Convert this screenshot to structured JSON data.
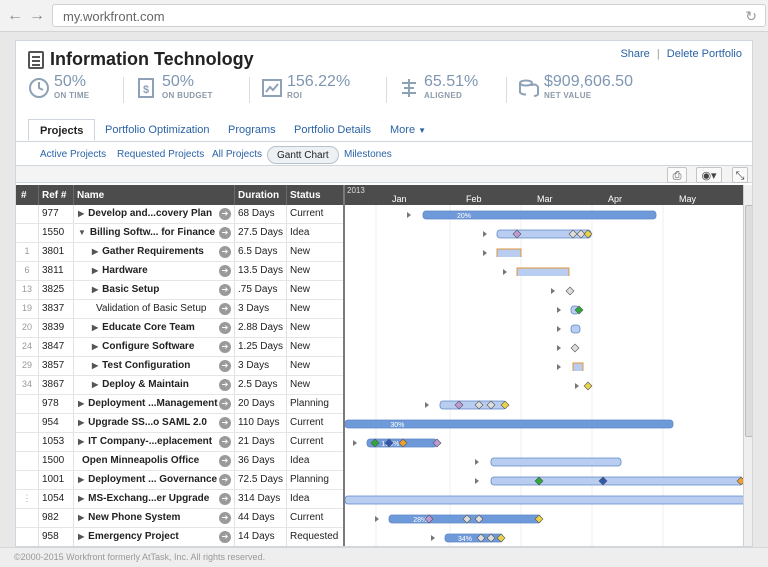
{
  "browser": {
    "url": "my.workfront.com"
  },
  "header": {
    "title": "Information Technology",
    "actions": [
      "Share",
      "|",
      "Delete Portfolio"
    ]
  },
  "metrics": [
    {
      "value": "50%",
      "label": "ON TIME",
      "icon": "clock-icon"
    },
    {
      "value": "50%",
      "label": "ON BUDGET",
      "icon": "dollar-document-icon"
    },
    {
      "value": "156.22%",
      "label": "ROI",
      "icon": "trend-chart-icon"
    },
    {
      "value": "65.51%",
      "label": "ALIGNED",
      "icon": "alignment-icon"
    },
    {
      "value": "$909,606.50",
      "label": "NET VALUE",
      "icon": "coins-icon"
    }
  ],
  "tabs": [
    "Projects",
    "Portfolio Optimization",
    "Programs",
    "Portfolio Details",
    "More"
  ],
  "subtabs": [
    "Active Projects",
    "Requested Projects",
    "All Projects",
    "Gantt Chart",
    "Milestones"
  ],
  "grid": {
    "headers": {
      "num": "#",
      "ref": "Ref #",
      "name": "Name",
      "duration": "Duration",
      "status": "Status"
    },
    "rows": [
      {
        "num": "",
        "ref": "977",
        "name": "Develop and...covery Plan",
        "duration": "68 Days",
        "status": "Current",
        "bold": true,
        "tri": "▶",
        "indent": 0
      },
      {
        "num": "",
        "ref": "1550",
        "name": "Billing Softw... for Finance",
        "duration": "27.5 Days",
        "status": "Idea",
        "bold": true,
        "tri": "▼",
        "indent": 0
      },
      {
        "num": "1",
        "ref": "3801",
        "name": "Gather Requirements",
        "duration": "6.5 Days",
        "status": "New",
        "bold": true,
        "tri": "▶",
        "indent": 1
      },
      {
        "num": "6",
        "ref": "3811",
        "name": "Hardware",
        "duration": "13.5 Days",
        "status": "New",
        "bold": true,
        "tri": "▶",
        "indent": 1
      },
      {
        "num": "13",
        "ref": "3825",
        "name": "Basic Setup",
        "duration": ".75 Days",
        "status": "New",
        "bold": true,
        "tri": "▶",
        "indent": 1
      },
      {
        "num": "19",
        "ref": "3837",
        "name": "Validation of Basic Setup",
        "duration": "3 Days",
        "status": "New",
        "bold": false,
        "tri": "",
        "indent": 1
      },
      {
        "num": "20",
        "ref": "3839",
        "name": "Educate Core Team",
        "duration": "2.88 Days",
        "status": "New",
        "bold": true,
        "tri": "▶",
        "indent": 1
      },
      {
        "num": "24",
        "ref": "3847",
        "name": "Configure Software",
        "duration": "1.25 Days",
        "status": "New",
        "bold": true,
        "tri": "▶",
        "indent": 1
      },
      {
        "num": "29",
        "ref": "3857",
        "name": "Test Configuration",
        "duration": "3 Days",
        "status": "New",
        "bold": true,
        "tri": "▶",
        "indent": 1
      },
      {
        "num": "34",
        "ref": "3867",
        "name": "Deploy & Maintain",
        "duration": "2.5 Days",
        "status": "New",
        "bold": true,
        "tri": "▶",
        "indent": 1
      },
      {
        "num": "",
        "ref": "978",
        "name": "Deployment ...Management",
        "duration": "20 Days",
        "status": "Planning",
        "bold": true,
        "tri": "▶",
        "indent": 0
      },
      {
        "num": "",
        "ref": "954",
        "name": "Upgrade SS...o SAML 2.0",
        "duration": "110 Days",
        "status": "Current",
        "bold": true,
        "tri": "▶",
        "indent": 0
      },
      {
        "num": "",
        "ref": "1053",
        "name": "IT Company-...eplacement",
        "duration": "21 Days",
        "status": "Current",
        "bold": true,
        "tri": "▶",
        "indent": 0
      },
      {
        "num": "",
        "ref": "1500",
        "name": "Open Minneapolis Office",
        "duration": "36 Days",
        "status": "Idea",
        "bold": true,
        "tri": "",
        "indent": 0
      },
      {
        "num": "",
        "ref": "1001",
        "name": "Deployment ... Governance",
        "duration": "72.5 Days",
        "status": "Planning",
        "bold": true,
        "tri": "▶",
        "indent": 0
      },
      {
        "num": "⋮",
        "ref": "1054",
        "name": "MS-Exchang...er Upgrade",
        "duration": "314 Days",
        "status": "Idea",
        "bold": true,
        "tri": "▶",
        "indent": 0
      },
      {
        "num": "",
        "ref": "982",
        "name": "New  Phone System",
        "duration": "44 Days",
        "status": "Current",
        "bold": true,
        "tri": "▶",
        "indent": 0
      },
      {
        "num": "",
        "ref": "958",
        "name": "Emergency Project",
        "duration": "14 Days",
        "status": "Requested",
        "bold": true,
        "tri": "▶",
        "indent": 0
      }
    ]
  },
  "gantt": {
    "year": "2013",
    "months": [
      "Jan",
      "Feb",
      "Mar",
      "Apr",
      "May"
    ],
    "bar_labels": [
      "20%",
      "30%",
      "100%",
      "28%",
      "34%"
    ],
    "colors": {
      "bar": "#6f9ad9",
      "bar_light": "#b8cdf0",
      "header": "#4c4c4c",
      "milestone_purple": "#c09ad8",
      "milestone_orange": "#f0a030",
      "milestone_green": "#2fa83a",
      "milestone_blue": "#2f57b8",
      "milestone_yellow": "#e8d34a"
    }
  },
  "footer": {
    "text": "©2000-2015 Workfront formerly AtTask, Inc. All rights reserved."
  }
}
